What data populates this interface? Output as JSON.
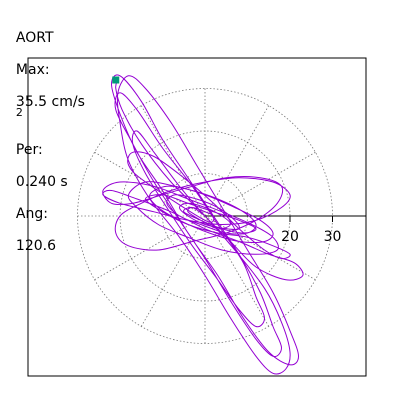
{
  "header": {
    "label": "AORT",
    "max_label": "Max:",
    "max_value": "35.5 cm/s",
    "max_exp": "2",
    "per_label": "Per:",
    "per_value": "0.240 s",
    "ang_label": "Ang:",
    "ang_value": "120.6"
  },
  "colors": {
    "trace": "#9400d3",
    "marker": "#009a7a",
    "grid": "#777777",
    "axis": "#000000",
    "frame": "#000000"
  },
  "chart_data": {
    "type": "polar",
    "rings": [
      10,
      20,
      30
    ],
    "ring_tick_labels": [
      "20",
      "30"
    ],
    "spoke_angles_deg": [
      0,
      30,
      60,
      90,
      120,
      150,
      180,
      210,
      240,
      270,
      300,
      330
    ],
    "max_value": 35.5,
    "angle_deg": 120.6,
    "trace": {
      "name": "",
      "points": [
        [
          -20.5,
          32
        ],
        [
          -21,
          30
        ],
        [
          -19.5,
          25
        ],
        [
          -15,
          17
        ],
        [
          -8,
          8
        ],
        [
          0,
          0
        ],
        [
          7,
          -8
        ],
        [
          14,
          -17
        ],
        [
          18,
          -25
        ],
        [
          20,
          -32
        ],
        [
          19,
          -36
        ],
        [
          16,
          -37
        ],
        [
          12,
          -33
        ],
        [
          6,
          -24
        ],
        [
          0,
          -14
        ],
        [
          -6,
          -5
        ],
        [
          -13,
          4
        ],
        [
          -18,
          13
        ],
        [
          -20,
          22
        ],
        [
          -20.5,
          29
        ],
        [
          -18,
          33
        ],
        [
          -14,
          30
        ],
        [
          -8,
          22
        ],
        [
          -2,
          12
        ],
        [
          4,
          2
        ],
        [
          10,
          -8
        ],
        [
          16,
          -18
        ],
        [
          20,
          -27
        ],
        [
          22,
          -33
        ],
        [
          20,
          -35
        ],
        [
          15,
          -32
        ],
        [
          9,
          -24
        ],
        [
          3,
          -14
        ],
        [
          -4,
          -4
        ],
        [
          -10,
          6
        ],
        [
          -16,
          15
        ],
        [
          -20,
          24
        ],
        [
          -22,
          31
        ],
        [
          -20,
          33
        ],
        [
          -15,
          27
        ],
        [
          -10,
          18
        ],
        [
          -4,
          9
        ],
        [
          2,
          0
        ],
        [
          8,
          -9
        ],
        [
          13,
          -18
        ],
        [
          16,
          -26
        ],
        [
          18,
          -31
        ],
        [
          16,
          -33
        ],
        [
          12,
          -29
        ],
        [
          6,
          -20
        ],
        [
          0,
          -10
        ],
        [
          -6,
          -1
        ],
        [
          -12,
          8
        ],
        [
          -17,
          17
        ],
        [
          -21,
          25
        ],
        [
          -20,
          29
        ],
        [
          -16,
          25
        ],
        [
          -10,
          16
        ],
        [
          -3,
          7
        ],
        [
          3,
          -2
        ],
        [
          9,
          -11
        ],
        [
          12,
          -19
        ],
        [
          14,
          -24
        ],
        [
          12,
          -26
        ],
        [
          8,
          -22
        ],
        [
          3,
          -15
        ],
        [
          -3,
          -7
        ],
        [
          -9,
          2
        ],
        [
          -14,
          10
        ],
        [
          -17,
          17
        ],
        [
          -16,
          20
        ],
        [
          -12,
          15
        ],
        [
          -6,
          7
        ],
        [
          0,
          0
        ],
        [
          6,
          -6
        ],
        [
          12,
          -12
        ],
        [
          19,
          -15
        ],
        [
          23,
          -14
        ],
        [
          21,
          -11
        ],
        [
          15,
          -9
        ],
        [
          8,
          -6
        ],
        [
          0,
          -3
        ],
        [
          -8,
          1
        ],
        [
          -16,
          4
        ],
        [
          -22,
          6
        ],
        [
          -24,
          5
        ],
        [
          -20,
          3
        ],
        [
          -12,
          1
        ],
        [
          -4,
          -1
        ],
        [
          4,
          -2
        ],
        [
          12,
          -1
        ],
        [
          18,
          2
        ],
        [
          20,
          5
        ],
        [
          16,
          8
        ],
        [
          8,
          9
        ],
        [
          0,
          8
        ],
        [
          -8,
          6
        ],
        [
          -15,
          3
        ],
        [
          -20,
          0
        ],
        [
          -21,
          -4
        ],
        [
          -18,
          -7
        ],
        [
          -11,
          -8
        ],
        [
          -3,
          -6
        ],
        [
          5,
          -4
        ],
        [
          12,
          -1
        ],
        [
          17,
          3
        ],
        [
          18,
          7
        ],
        [
          13,
          9
        ],
        [
          5,
          9
        ],
        [
          -3,
          7
        ],
        [
          -10,
          5
        ],
        [
          -17,
          3
        ],
        [
          -22,
          3
        ],
        [
          -24,
          6
        ],
        [
          -20,
          8
        ],
        [
          -12,
          7
        ],
        [
          -4,
          4
        ],
        [
          4,
          1
        ],
        [
          11,
          -2
        ],
        [
          16,
          -5
        ],
        [
          17,
          -8
        ],
        [
          12,
          -9
        ],
        [
          4,
          -8
        ],
        [
          -4,
          -5
        ],
        [
          -11,
          -2
        ],
        [
          -16,
          2
        ],
        [
          -18,
          5
        ],
        [
          -14,
          8
        ],
        [
          -7,
          7
        ],
        [
          0,
          5
        ],
        [
          7,
          2
        ],
        [
          13,
          -1
        ],
        [
          16,
          -4
        ],
        [
          14,
          -6
        ],
        [
          8,
          -6
        ],
        [
          1,
          -4
        ],
        [
          -6,
          -1
        ],
        [
          -11,
          2
        ],
        [
          -13,
          5
        ],
        [
          -9,
          7
        ],
        [
          -3,
          6
        ],
        [
          3,
          4
        ],
        [
          9,
          1
        ],
        [
          12,
          -2
        ],
        [
          10,
          -4
        ],
        [
          5,
          -4
        ],
        [
          -1,
          -2
        ],
        [
          -6,
          0
        ],
        [
          -9,
          3
        ],
        [
          -7,
          5
        ],
        [
          -2,
          4
        ],
        [
          3,
          2
        ],
        [
          7,
          -1
        ],
        [
          8,
          -3
        ],
        [
          5,
          -3
        ],
        [
          0,
          -2
        ],
        [
          -4,
          0
        ],
        [
          -6,
          2
        ],
        [
          -4,
          3
        ],
        [
          0,
          2
        ],
        [
          4,
          0
        ],
        [
          6,
          -2
        ],
        [
          3,
          -3
        ],
        [
          -1,
          -1
        ],
        [
          -4,
          1
        ],
        [
          -3,
          2
        ],
        [
          0,
          1
        ],
        [
          2,
          0
        ],
        [
          0,
          -1
        ],
        [
          -14,
          8
        ],
        [
          -18,
          12
        ],
        [
          -17,
          15
        ],
        [
          -12,
          14
        ],
        [
          -5,
          9
        ],
        [
          2,
          3
        ],
        [
          8,
          -3
        ],
        [
          14,
          -8
        ],
        [
          18,
          -10
        ],
        [
          20,
          -9
        ],
        [
          16,
          -7
        ],
        [
          10,
          -5
        ],
        [
          3,
          -4
        ],
        [
          -4,
          -2
        ],
        [
          -10,
          1
        ],
        [
          -14,
          4
        ],
        [
          -10,
          5
        ],
        [
          -4,
          3
        ],
        [
          2,
          1
        ],
        [
          8,
          -1
        ],
        [
          12,
          -3
        ],
        [
          9,
          -4
        ],
        [
          4,
          -3
        ],
        [
          -1,
          -1
        ],
        [
          -5,
          1
        ],
        [
          -3,
          2
        ],
        [
          0,
          0
        ]
      ]
    },
    "start_marker": [
      -21,
      32
    ]
  }
}
